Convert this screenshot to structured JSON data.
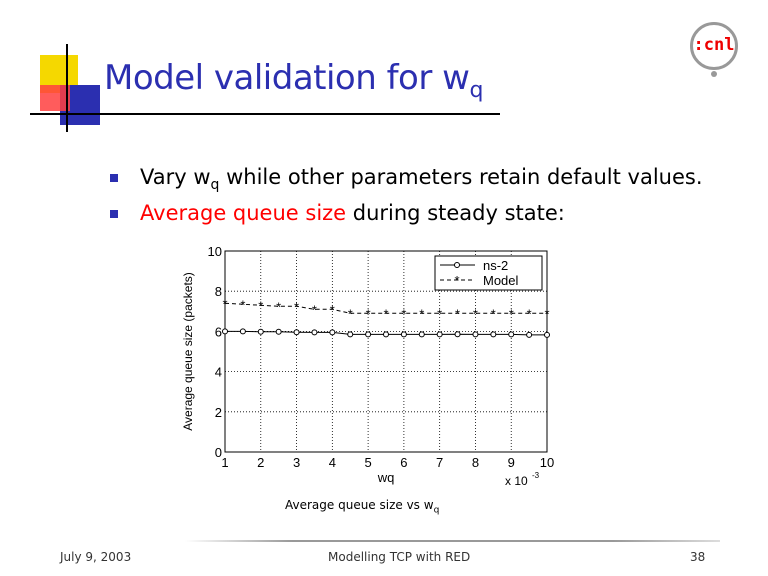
{
  "title": {
    "main": "Model validation for w",
    "sub": "q"
  },
  "bullets": [
    {
      "pre": "Vary w",
      "sub": "q",
      "post": " while other parameters retain default values."
    },
    {
      "red": "Average queue size",
      "post": " during steady state:"
    }
  ],
  "caption": {
    "main": "Average queue size vs w",
    "sub": "q"
  },
  "logo_text": "cnl",
  "footer": {
    "date": "July 9, 2003",
    "title": "Modelling TCP with RED",
    "page": "38"
  },
  "colors": {
    "title": "#2b2fb0",
    "highlight": "#ff0000"
  },
  "chart_data": {
    "type": "line",
    "xlabel": "wq",
    "x_multiplier": "x 10^-3",
    "ylabel": "Average queue size (packets)",
    "xlim": [
      1,
      10
    ],
    "ylim": [
      0,
      10
    ],
    "xticks": [
      1,
      2,
      3,
      4,
      5,
      6,
      7,
      8,
      9,
      10
    ],
    "yticks": [
      0,
      2,
      4,
      6,
      8,
      10
    ],
    "grid": true,
    "legend_position": "top-right",
    "x": [
      1,
      1.5,
      2,
      2.5,
      3,
      3.5,
      4,
      4.5,
      5,
      5.5,
      6,
      6.5,
      7,
      7.5,
      8,
      8.5,
      9,
      9.5,
      10
    ],
    "series": [
      {
        "name": "ns-2",
        "marker": "circle",
        "line": "solid",
        "values": [
          6.0,
          6.0,
          5.98,
          5.98,
          5.96,
          5.95,
          5.95,
          5.85,
          5.85,
          5.85,
          5.85,
          5.85,
          5.85,
          5.86,
          5.85,
          5.85,
          5.85,
          5.83,
          5.83
        ]
      },
      {
        "name": "Model",
        "marker": "star",
        "line": "dashed",
        "values": [
          7.4,
          7.35,
          7.3,
          7.25,
          7.25,
          7.1,
          7.1,
          6.9,
          6.9,
          6.9,
          6.9,
          6.9,
          6.9,
          6.9,
          6.9,
          6.9,
          6.9,
          6.9,
          6.9
        ]
      }
    ]
  }
}
